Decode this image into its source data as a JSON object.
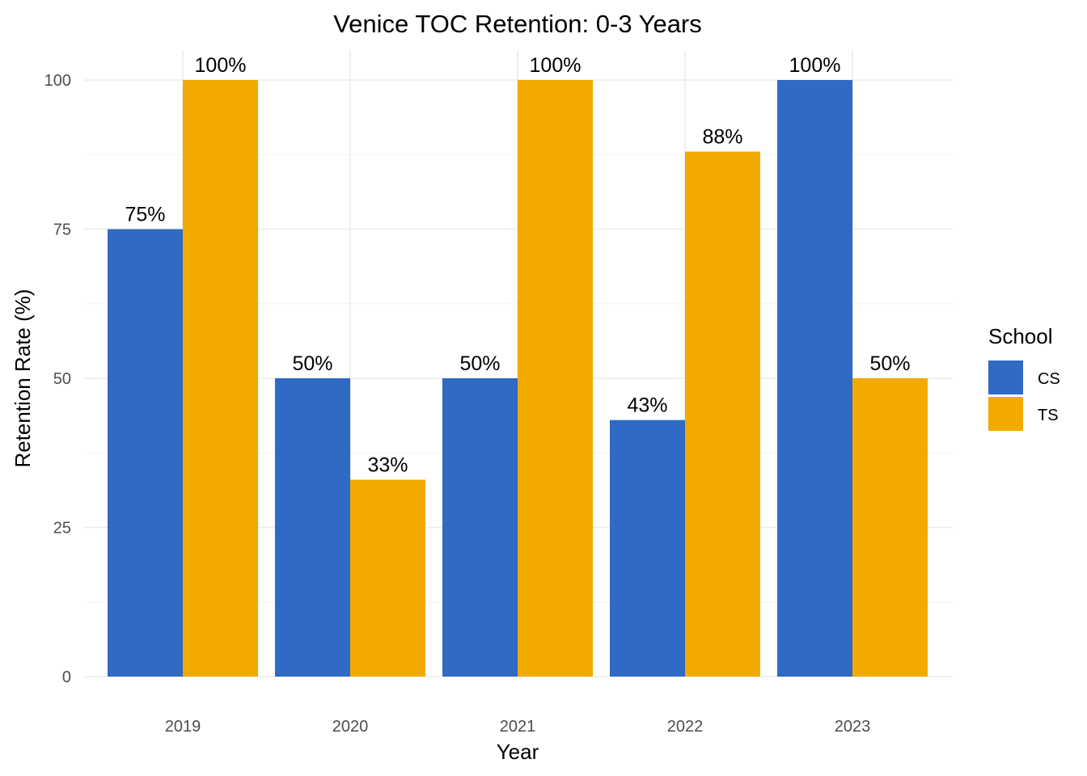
{
  "chart_data": {
    "type": "bar",
    "title": "Venice TOC Retention: 0-3 Years",
    "xlabel": "Year",
    "ylabel": "Retention Rate (%)",
    "categories": [
      "2019",
      "2020",
      "2021",
      "2022",
      "2023"
    ],
    "series": [
      {
        "name": "CS",
        "color": "#2f6ac4",
        "values": [
          75,
          50,
          50,
          43,
          100
        ],
        "labels": [
          "75%",
          "50%",
          "50%",
          "43%",
          "100%"
        ]
      },
      {
        "name": "TS",
        "color": "#f2aa00",
        "values": [
          100,
          33,
          100,
          88,
          50
        ],
        "labels": [
          "100%",
          "33%",
          "100%",
          "88%",
          "50%"
        ]
      }
    ],
    "ylim": [
      0,
      100
    ],
    "yticks": [
      "0",
      "25",
      "50",
      "75",
      "100"
    ],
    "grid": true,
    "legend": {
      "title": "School",
      "placement": "right"
    }
  }
}
